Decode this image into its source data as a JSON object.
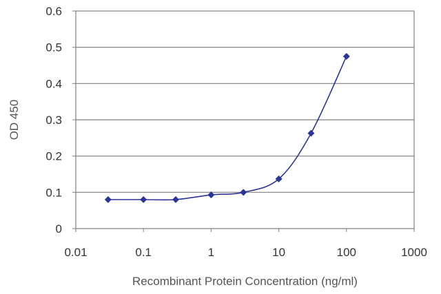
{
  "chart_data": {
    "type": "line",
    "title": "",
    "xlabel": "Recombinant Protein Concentration (ng/ml)",
    "ylabel": "OD 450",
    "xscale": "log",
    "xlim": [
      0.01,
      1000
    ],
    "ylim": [
      0,
      0.6
    ],
    "xticks": [
      "0.01",
      "0.1",
      "1",
      "10",
      "100",
      "1000"
    ],
    "yticks": [
      "0",
      "0.1",
      "0.2",
      "0.3",
      "0.4",
      "0.5",
      "0.6"
    ],
    "grid": "horizontal",
    "legend": "none",
    "series": [
      {
        "color": "#2a3598",
        "marker": "diamond",
        "x": [
          0.03,
          0.1,
          0.3,
          1,
          3,
          10,
          30,
          100
        ],
        "y": [
          0.08,
          0.08,
          0.08,
          0.093,
          0.1,
          0.137,
          0.263,
          0.475
        ]
      }
    ]
  }
}
